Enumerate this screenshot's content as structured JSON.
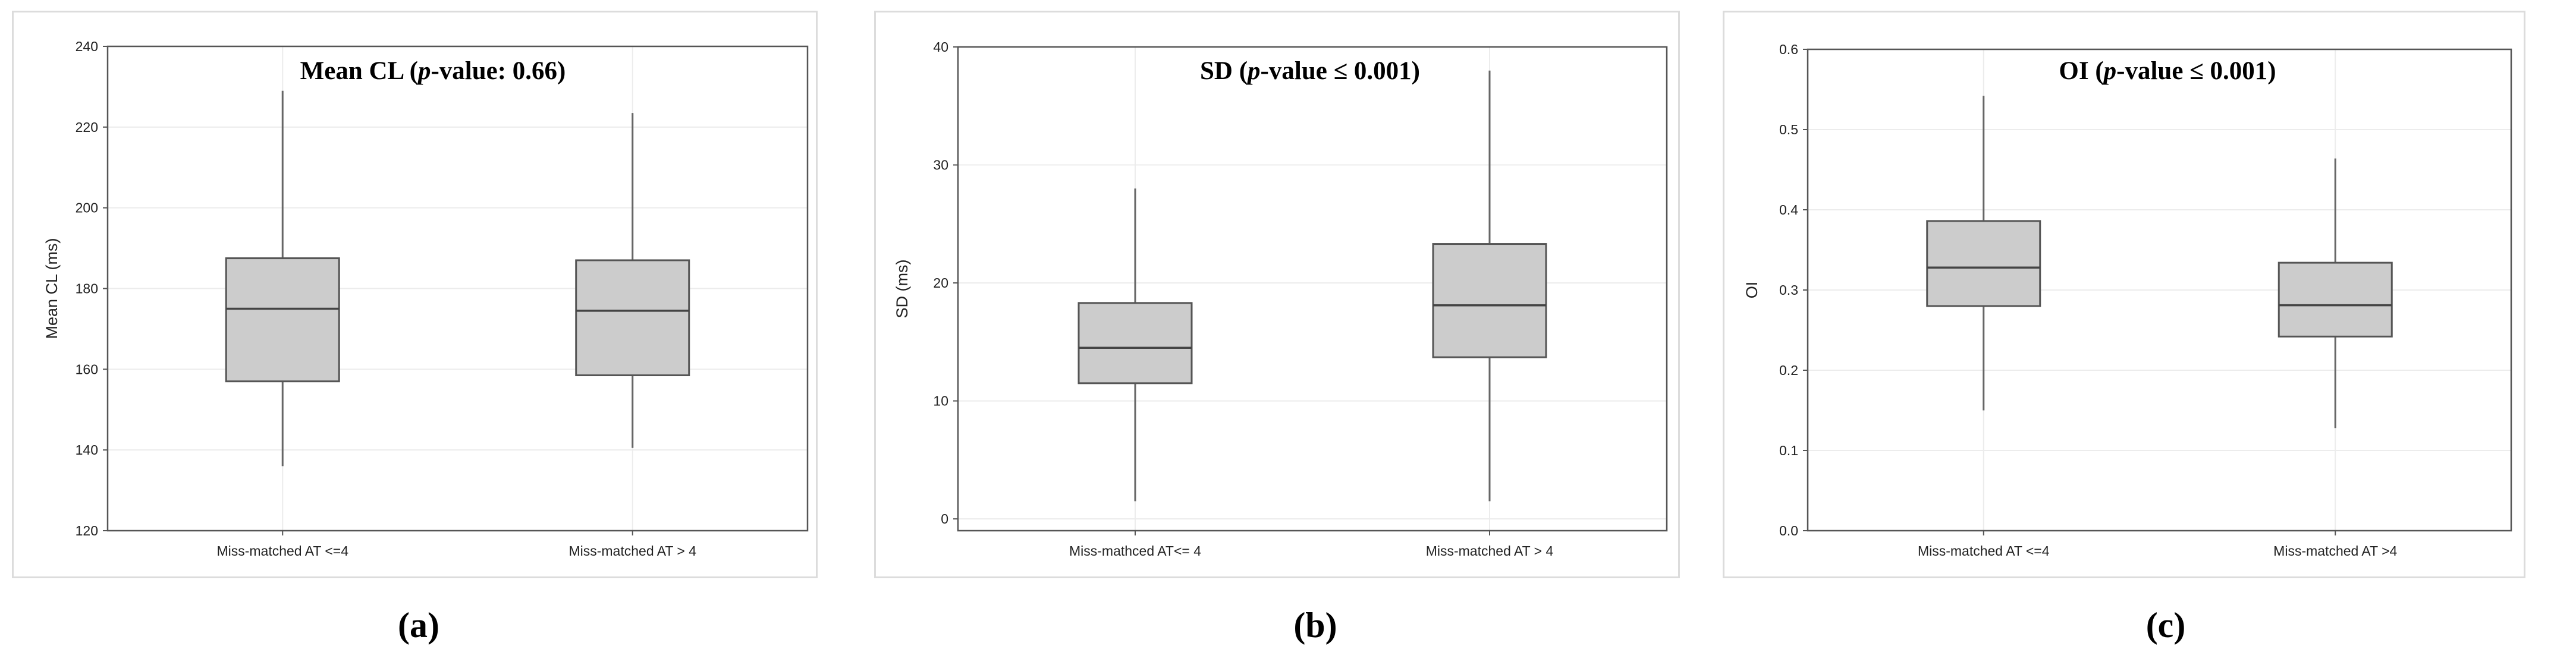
{
  "chart_data": [
    {
      "type": "box",
      "title_bold": "Mean CL (",
      "title_italic": "p",
      "title_rest": "-value: 0.66)",
      "ylabel": "Mean CL (ms)",
      "ylim": [
        120,
        240
      ],
      "yticks": [
        120,
        140,
        160,
        180,
        200,
        220,
        240
      ],
      "ytick_labels": [
        "120",
        "140",
        "160",
        "180",
        "200",
        "220",
        "240"
      ],
      "categories": [
        "Miss-matched AT <=4",
        "Miss-matched AT > 4"
      ],
      "boxes": [
        {
          "min": 136,
          "q1": 157,
          "median": 175,
          "q3": 187.5,
          "max": 229
        },
        {
          "min": 140.5,
          "q1": 158.5,
          "median": 174.5,
          "q3": 187,
          "max": 223.5
        }
      ],
      "box_color": "#cccccc",
      "caption": "(a)"
    },
    {
      "type": "box",
      "title_bold": "SD (",
      "title_italic": "p",
      "title_rest": "-value ≤ 0.001)",
      "ylabel": "SD (ms)",
      "ylim": [
        -1,
        40
      ],
      "yticks": [
        0,
        10,
        20,
        30,
        40
      ],
      "ytick_labels": [
        "0",
        "10",
        "20",
        "30",
        "40"
      ],
      "categories": [
        "Miss-mathced AT<= 4",
        "Miss-matched AT > 4"
      ],
      "boxes": [
        {
          "min": 1.5,
          "q1": 11.5,
          "median": 14.5,
          "q3": 18.3,
          "max": 28
        },
        {
          "min": 1.5,
          "q1": 13.7,
          "median": 18.1,
          "q3": 23.3,
          "max": 38
        }
      ],
      "box_color": "#cccccc",
      "caption": "(b)"
    },
    {
      "type": "box",
      "title_bold": "OI (",
      "title_italic": "p",
      "title_rest": "-value ≤ 0.001)",
      "ylabel": "OI",
      "ylim": [
        0,
        0.6
      ],
      "yticks": [
        0,
        0.1,
        0.2,
        0.3,
        0.4,
        0.5,
        0.6
      ],
      "ytick_labels": [
        "0.0",
        "0.1",
        "0.2",
        "0.3",
        "0.4",
        "0.5",
        "0.6"
      ],
      "categories": [
        "Miss-matched AT <=4",
        "Miss-matched AT >4"
      ],
      "boxes": [
        {
          "min": 0.15,
          "q1": 0.28,
          "median": 0.328,
          "q3": 0.386,
          "max": 0.542
        },
        {
          "min": 0.128,
          "q1": 0.242,
          "median": 0.281,
          "q3": 0.334,
          "max": 0.464
        }
      ],
      "box_color": "#cccccc",
      "caption": "(c)"
    }
  ]
}
